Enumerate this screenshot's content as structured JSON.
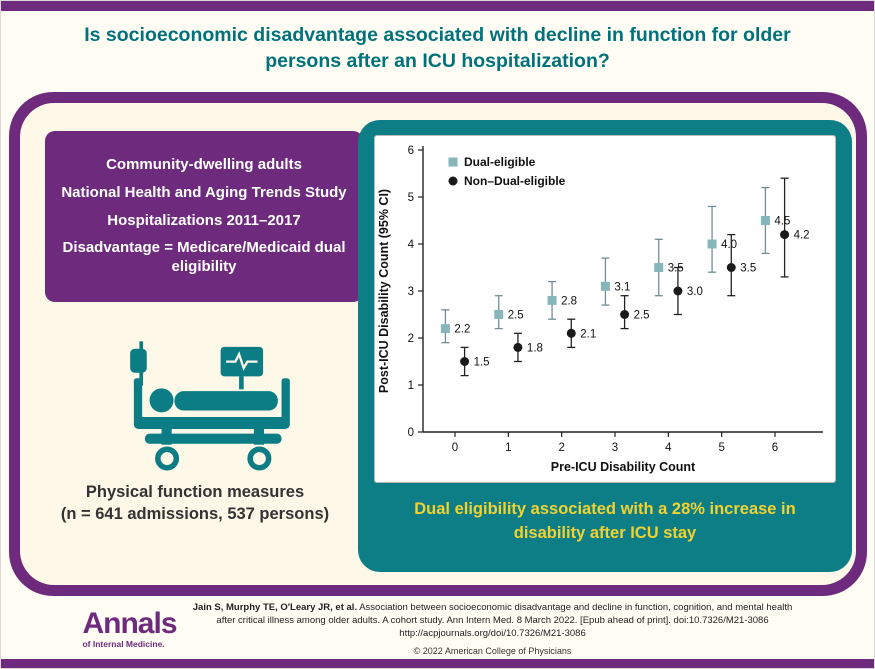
{
  "title": "Is socioeconomic disadvantage associated with decline in function for older persons after an ICU hospitalization?",
  "left_panel": {
    "info_lines": [
      "Community-dwelling adults",
      "National Health and Aging Trends Study",
      "Hospitalizations 2011–2017",
      "Disadvantage = Medicare/Medicaid dual eligibility"
    ],
    "measure_line1": "Physical function measures",
    "measure_line2": "(n = 641 admissions, 537 persons)"
  },
  "chart_data": {
    "type": "scatter",
    "title": "",
    "xlabel": "Pre-ICU Disability Count",
    "ylabel": "Post-ICU Disability Count (95% CI)",
    "x": [
      0,
      1,
      2,
      3,
      4,
      5,
      6
    ],
    "xticks": [
      0,
      1,
      2,
      3,
      4,
      5,
      6
    ],
    "yticks": [
      0,
      1,
      2,
      3,
      4,
      5,
      6
    ],
    "xlim": [
      -0.6,
      6.9
    ],
    "ylim": [
      0,
      6
    ],
    "grid": false,
    "legend_position": "top-left",
    "series": [
      {
        "name": "Dual-eligible",
        "marker": "square",
        "color": "#86b6bc",
        "errorbar_color": "#6f8f94",
        "values": [
          2.2,
          2.5,
          2.8,
          3.1,
          3.5,
          4.0,
          4.5
        ],
        "ci_low": [
          1.9,
          2.2,
          2.4,
          2.7,
          2.9,
          3.4,
          3.8
        ],
        "ci_high": [
          2.6,
          2.9,
          3.2,
          3.7,
          4.1,
          4.8,
          5.2
        ]
      },
      {
        "name": "Non–Dual-eligible",
        "marker": "circle",
        "color": "#1a1a1a",
        "errorbar_color": "#222222",
        "values": [
          1.5,
          1.8,
          2.1,
          2.5,
          3.0,
          3.5,
          4.2
        ],
        "ci_low": [
          1.2,
          1.5,
          1.8,
          2.2,
          2.5,
          2.9,
          3.3
        ],
        "ci_high": [
          1.8,
          2.1,
          2.4,
          2.9,
          3.5,
          4.2,
          5.4
        ]
      }
    ]
  },
  "conclusion": "Dual eligibility associated with a 28% increase in disability after ICU stay",
  "footer": {
    "logo_line1": "Annals",
    "logo_line2": "of Internal Medicine.",
    "citation_bold": "Jain S, Murphy TE, O'Leary JR, et al.",
    "citation_rest": " Association between socioeconomic disadvantage and decline in function, cognition, and mental health after critical illness among older adults. A cohort study. Ann Intern Med. 8 March 2022. [Epub ahead of print]. doi:10.7326/M21-3086",
    "url": "http://acpjournals.org/doi/10.7326/M21-3086",
    "copyright": "© 2022 American College of Physicians"
  },
  "colors": {
    "purple": "#6e2b7e",
    "teal": "#0d7e86",
    "title_teal": "#00727c",
    "cream": "#fdf8e7",
    "yellow": "#f2d230",
    "dual_marker": "#86b6bc"
  }
}
